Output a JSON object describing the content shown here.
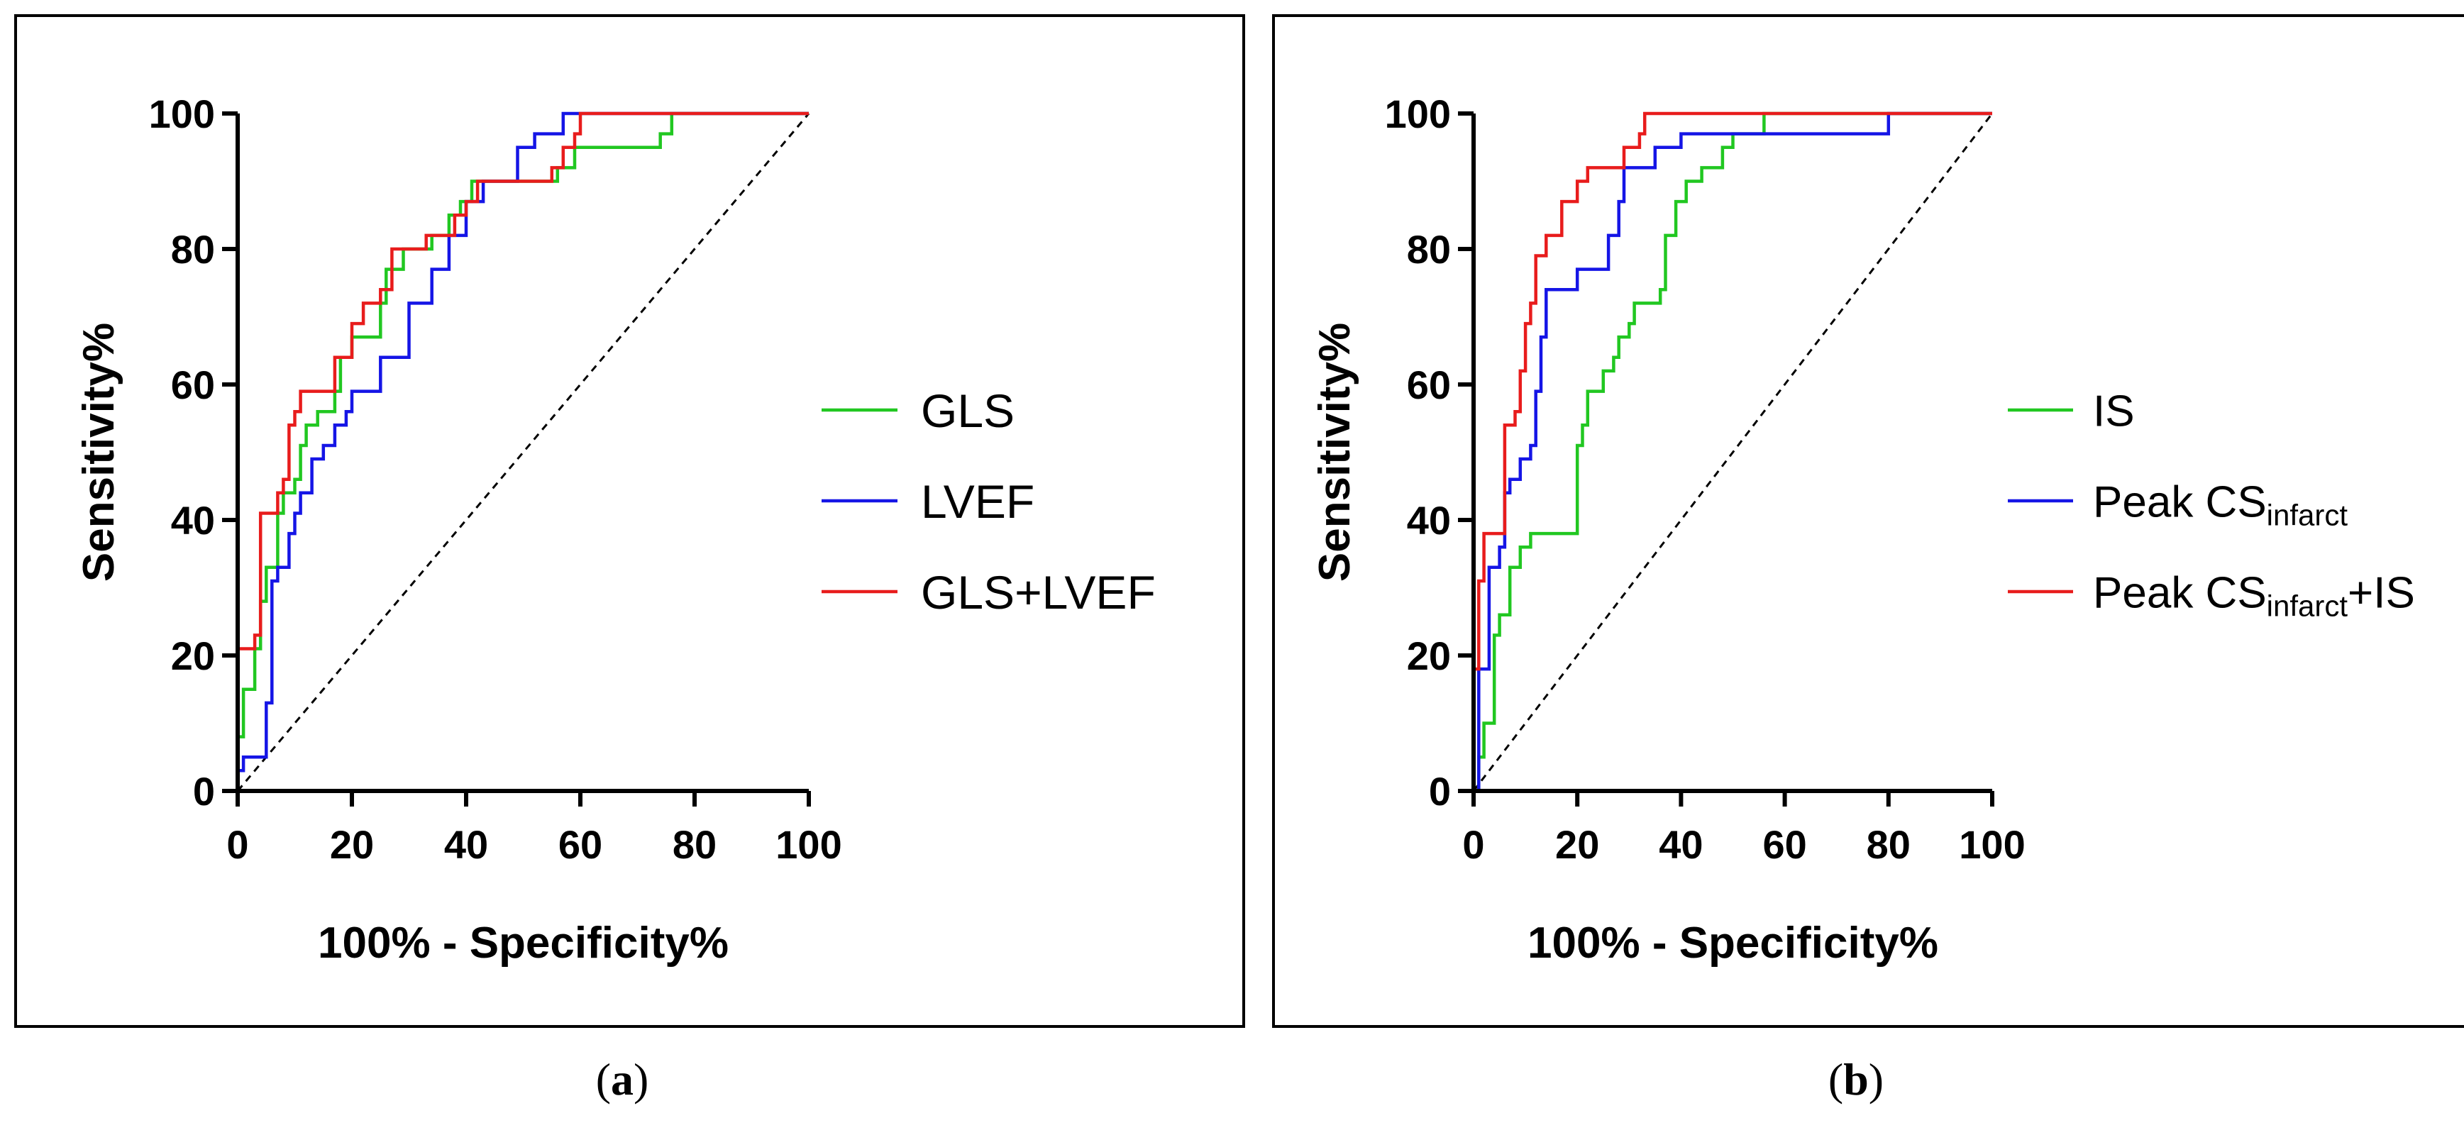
{
  "chart_data": [
    {
      "type": "line",
      "panel": "(a)",
      "panel_letter": "a",
      "xlabel": "100% - Specificity%",
      "ylabel": "Sensitivity%",
      "xlim": [
        0,
        100
      ],
      "ylim": [
        0,
        100
      ],
      "xticks": [
        0,
        20,
        40,
        60,
        80,
        100
      ],
      "yticks": [
        0,
        20,
        40,
        60,
        80,
        100
      ],
      "grid": false,
      "legend_position": "right",
      "reference_line": {
        "style": "dashed",
        "from": [
          0,
          0
        ],
        "to": [
          100,
          100
        ]
      },
      "series": [
        {
          "name": "GLS",
          "name_main": "GLS",
          "name_sub": "",
          "name_tail": "",
          "color": "#21c721",
          "points": [
            [
              0,
              0
            ],
            [
              0,
              8
            ],
            [
              1,
              8
            ],
            [
              1,
              15
            ],
            [
              3,
              15
            ],
            [
              3,
              21
            ],
            [
              4,
              21
            ],
            [
              4,
              28
            ],
            [
              5,
              28
            ],
            [
              5,
              33
            ],
            [
              7,
              33
            ],
            [
              7,
              41
            ],
            [
              8,
              41
            ],
            [
              8,
              44
            ],
            [
              10,
              44
            ],
            [
              10,
              46
            ],
            [
              11,
              46
            ],
            [
              11,
              51
            ],
            [
              12,
              51
            ],
            [
              12,
              54
            ],
            [
              14,
              54
            ],
            [
              14,
              56
            ],
            [
              17,
              56
            ],
            [
              17,
              59
            ],
            [
              18,
              59
            ],
            [
              18,
              64
            ],
            [
              20,
              64
            ],
            [
              20,
              67
            ],
            [
              25,
              67
            ],
            [
              25,
              72
            ],
            [
              26,
              72
            ],
            [
              26,
              77
            ],
            [
              29,
              77
            ],
            [
              29,
              80
            ],
            [
              34,
              80
            ],
            [
              34,
              82
            ],
            [
              37,
              82
            ],
            [
              37,
              85
            ],
            [
              39,
              85
            ],
            [
              39,
              87
            ],
            [
              41,
              87
            ],
            [
              41,
              90
            ],
            [
              56,
              90
            ],
            [
              56,
              92
            ],
            [
              59,
              92
            ],
            [
              59,
              95
            ],
            [
              74,
              95
            ],
            [
              74,
              97
            ],
            [
              76,
              97
            ],
            [
              76,
              100
            ],
            [
              100,
              100
            ]
          ]
        },
        {
          "name": "LVEF",
          "name_main": "LVEF",
          "name_sub": "",
          "name_tail": "",
          "color": "#1515e6",
          "points": [
            [
              0,
              0
            ],
            [
              0,
              3
            ],
            [
              1,
              3
            ],
            [
              1,
              5
            ],
            [
              5,
              5
            ],
            [
              5,
              13
            ],
            [
              6,
              13
            ],
            [
              6,
              31
            ],
            [
              7,
              31
            ],
            [
              7,
              33
            ],
            [
              9,
              33
            ],
            [
              9,
              38
            ],
            [
              10,
              38
            ],
            [
              10,
              41
            ],
            [
              11,
              41
            ],
            [
              11,
              44
            ],
            [
              13,
              44
            ],
            [
              13,
              49
            ],
            [
              15,
              49
            ],
            [
              15,
              51
            ],
            [
              17,
              51
            ],
            [
              17,
              54
            ],
            [
              19,
              54
            ],
            [
              19,
              56
            ],
            [
              20,
              56
            ],
            [
              20,
              59
            ],
            [
              25,
              59
            ],
            [
              25,
              64
            ],
            [
              30,
              64
            ],
            [
              30,
              72
            ],
            [
              34,
              72
            ],
            [
              34,
              77
            ],
            [
              37,
              77
            ],
            [
              37,
              82
            ],
            [
              40,
              82
            ],
            [
              40,
              87
            ],
            [
              43,
              87
            ],
            [
              43,
              90
            ],
            [
              49,
              90
            ],
            [
              49,
              95
            ],
            [
              52,
              95
            ],
            [
              52,
              97
            ],
            [
              57,
              97
            ],
            [
              57,
              100
            ],
            [
              100,
              100
            ]
          ]
        },
        {
          "name": "GLS+LVEF",
          "name_main": "GLS+LVEF",
          "name_sub": "",
          "name_tail": "",
          "color": "#e81c1c",
          "points": [
            [
              0,
              0
            ],
            [
              0,
              21
            ],
            [
              3,
              21
            ],
            [
              3,
              23
            ],
            [
              4,
              23
            ],
            [
              4,
              41
            ],
            [
              7,
              41
            ],
            [
              7,
              44
            ],
            [
              8,
              44
            ],
            [
              8,
              46
            ],
            [
              9,
              46
            ],
            [
              9,
              54
            ],
            [
              10,
              54
            ],
            [
              10,
              56
            ],
            [
              11,
              56
            ],
            [
              11,
              59
            ],
            [
              17,
              59
            ],
            [
              17,
              64
            ],
            [
              20,
              64
            ],
            [
              20,
              69
            ],
            [
              22,
              69
            ],
            [
              22,
              72
            ],
            [
              25,
              72
            ],
            [
              25,
              74
            ],
            [
              27,
              74
            ],
            [
              27,
              80
            ],
            [
              33,
              80
            ],
            [
              33,
              82
            ],
            [
              38,
              82
            ],
            [
              38,
              85
            ],
            [
              40,
              85
            ],
            [
              40,
              87
            ],
            [
              42,
              87
            ],
            [
              42,
              90
            ],
            [
              55,
              90
            ],
            [
              55,
              92
            ],
            [
              57,
              92
            ],
            [
              57,
              95
            ],
            [
              59,
              95
            ],
            [
              59,
              97
            ],
            [
              60,
              97
            ],
            [
              60,
              100
            ],
            [
              100,
              100
            ]
          ]
        }
      ]
    },
    {
      "type": "line",
      "panel": "(b)",
      "panel_letter": "b",
      "xlabel": "100% - Specificity%",
      "ylabel": "Sensitivity%",
      "xlim": [
        0,
        100
      ],
      "ylim": [
        0,
        100
      ],
      "xticks": [
        0,
        20,
        40,
        60,
        80,
        100
      ],
      "yticks": [
        0,
        20,
        40,
        60,
        80,
        100
      ],
      "grid": false,
      "legend_position": "right",
      "reference_line": {
        "style": "dashed",
        "from": [
          0,
          0
        ],
        "to": [
          100,
          100
        ]
      },
      "series": [
        {
          "name": "IS",
          "name_main": "IS",
          "name_sub": "",
          "name_tail": "",
          "color": "#21c721",
          "points": [
            [
              0,
              0
            ],
            [
              1,
              0
            ],
            [
              1,
              5
            ],
            [
              2,
              5
            ],
            [
              2,
              10
            ],
            [
              4,
              10
            ],
            [
              4,
              23
            ],
            [
              5,
              23
            ],
            [
              5,
              26
            ],
            [
              7,
              26
            ],
            [
              7,
              33
            ],
            [
              9,
              33
            ],
            [
              9,
              36
            ],
            [
              11,
              36
            ],
            [
              11,
              38
            ],
            [
              20,
              38
            ],
            [
              20,
              51
            ],
            [
              21,
              51
            ],
            [
              21,
              54
            ],
            [
              22,
              54
            ],
            [
              22,
              59
            ],
            [
              25,
              59
            ],
            [
              25,
              62
            ],
            [
              27,
              62
            ],
            [
              27,
              64
            ],
            [
              28,
              64
            ],
            [
              28,
              67
            ],
            [
              30,
              67
            ],
            [
              30,
              69
            ],
            [
              31,
              69
            ],
            [
              31,
              72
            ],
            [
              36,
              72
            ],
            [
              36,
              74
            ],
            [
              37,
              74
            ],
            [
              37,
              82
            ],
            [
              39,
              82
            ],
            [
              39,
              87
            ],
            [
              41,
              87
            ],
            [
              41,
              90
            ],
            [
              44,
              90
            ],
            [
              44,
              92
            ],
            [
              48,
              92
            ],
            [
              48,
              95
            ],
            [
              50,
              95
            ],
            [
              50,
              97
            ],
            [
              56,
              97
            ],
            [
              56,
              100
            ],
            [
              100,
              100
            ]
          ]
        },
        {
          "name": "Peak CSinfarct",
          "name_main": "Peak CS",
          "name_sub": "infarct",
          "name_tail": "",
          "color": "#1515e6",
          "points": [
            [
              0,
              0
            ],
            [
              1,
              0
            ],
            [
              1,
              18
            ],
            [
              3,
              18
            ],
            [
              3,
              33
            ],
            [
              5,
              33
            ],
            [
              5,
              36
            ],
            [
              6,
              36
            ],
            [
              6,
              44
            ],
            [
              7,
              44
            ],
            [
              7,
              46
            ],
            [
              9,
              46
            ],
            [
              9,
              49
            ],
            [
              11,
              49
            ],
            [
              11,
              51
            ],
            [
              12,
              51
            ],
            [
              12,
              59
            ],
            [
              13,
              59
            ],
            [
              13,
              67
            ],
            [
              14,
              67
            ],
            [
              14,
              74
            ],
            [
              20,
              74
            ],
            [
              20,
              77
            ],
            [
              26,
              77
            ],
            [
              26,
              82
            ],
            [
              28,
              82
            ],
            [
              28,
              87
            ],
            [
              29,
              87
            ],
            [
              29,
              92
            ],
            [
              35,
              92
            ],
            [
              35,
              95
            ],
            [
              40,
              95
            ],
            [
              40,
              97
            ],
            [
              80,
              97
            ],
            [
              80,
              100
            ],
            [
              100,
              100
            ]
          ]
        },
        {
          "name": "Peak CSinfarct+IS",
          "name_main": "Peak CS",
          "name_sub": "infarct",
          "name_tail": "+IS",
          "color": "#e81c1c",
          "points": [
            [
              0,
              0
            ],
            [
              0,
              18
            ],
            [
              1,
              18
            ],
            [
              1,
              31
            ],
            [
              2,
              31
            ],
            [
              2,
              38
            ],
            [
              6,
              38
            ],
            [
              6,
              54
            ],
            [
              8,
              54
            ],
            [
              8,
              56
            ],
            [
              9,
              56
            ],
            [
              9,
              62
            ],
            [
              10,
              62
            ],
            [
              10,
              69
            ],
            [
              11,
              69
            ],
            [
              11,
              72
            ],
            [
              12,
              72
            ],
            [
              12,
              79
            ],
            [
              14,
              79
            ],
            [
              14,
              82
            ],
            [
              17,
              82
            ],
            [
              17,
              87
            ],
            [
              20,
              87
            ],
            [
              20,
              90
            ],
            [
              22,
              90
            ],
            [
              22,
              92
            ],
            [
              29,
              92
            ],
            [
              29,
              95
            ],
            [
              32,
              95
            ],
            [
              32,
              97
            ],
            [
              33,
              97
            ],
            [
              33,
              100
            ],
            [
              100,
              100
            ]
          ]
        }
      ]
    }
  ]
}
